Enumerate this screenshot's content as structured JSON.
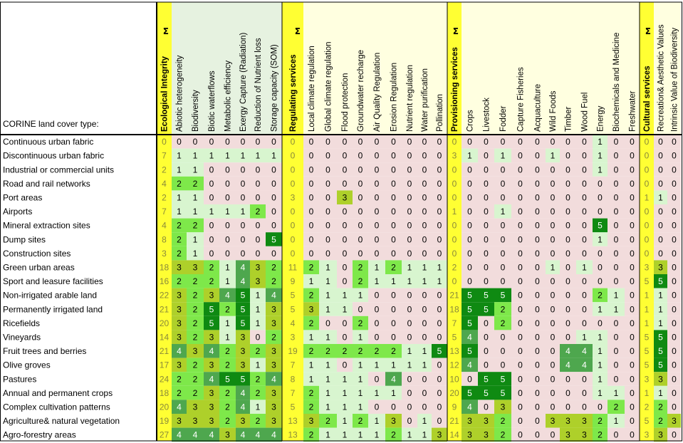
{
  "chart_data": {
    "type": "heatmap",
    "corner_label": "CORINE land cover type:",
    "sum_symbol": "Σ",
    "columns": [
      "Ecological Integrity",
      "Abiotic heterogeneity",
      "Biodiversity",
      "Biotic waterflows",
      "Metabolic efficiency",
      "Exergy Capture (Radiation)",
      "Reduction of Nutrient loss",
      "Storage capacity (SOM)",
      "Regulating services",
      "Local climate regulation",
      "Global climate regulation",
      "Flood protection",
      "Groundwater recharge",
      "Air Quality Regulation",
      "Erosion Regulation",
      "Nutrient regulation",
      "Water purification",
      "Pollination",
      "Provisioning services",
      "Crops",
      "Livestock",
      "Fodder",
      "Capture Fisheries",
      "Acquaculture",
      "Wild Foods",
      "Timber",
      "Wood Fuel",
      "Energy",
      "Biochemicals and Medicine",
      "Freshwater",
      "Cultural services",
      "Recreation& Aesthetic Values",
      "Intrinsic Value of Biodiversity"
    ],
    "sum_columns": [
      0,
      8,
      18,
      30
    ],
    "rows": [
      {
        "label": "Continuous urban fabric",
        "values": [
          0,
          0,
          0,
          0,
          0,
          0,
          0,
          0,
          0,
          0,
          0,
          0,
          0,
          0,
          0,
          0,
          0,
          0,
          0,
          0,
          0,
          0,
          0,
          0,
          0,
          0,
          0,
          1,
          0,
          0,
          0,
          0,
          0
        ]
      },
      {
        "label": "Discontinuous urban fabric",
        "values": [
          7,
          1,
          1,
          1,
          1,
          1,
          1,
          1,
          0,
          0,
          0,
          0,
          0,
          0,
          0,
          0,
          0,
          0,
          3,
          1,
          0,
          1,
          0,
          0,
          1,
          0,
          0,
          1,
          0,
          0,
          0,
          0,
          0
        ]
      },
      {
        "label": "Industrial or commercial units",
        "values": [
          2,
          1,
          1,
          0,
          0,
          0,
          0,
          0,
          0,
          0,
          0,
          0,
          0,
          0,
          0,
          0,
          0,
          0,
          0,
          0,
          0,
          0,
          0,
          0,
          0,
          0,
          0,
          1,
          0,
          0,
          0,
          0,
          0
        ]
      },
      {
        "label": "Road and rail networks",
        "values": [
          4,
          2,
          2,
          0,
          0,
          0,
          0,
          0,
          0,
          0,
          0,
          0,
          0,
          0,
          0,
          0,
          0,
          0,
          0,
          0,
          0,
          0,
          0,
          0,
          0,
          0,
          0,
          0,
          0,
          0,
          0,
          0,
          0
        ]
      },
      {
        "label": "Port areas",
        "values": [
          2,
          1,
          1,
          0,
          0,
          0,
          0,
          0,
          3,
          0,
          0,
          3,
          0,
          0,
          0,
          0,
          0,
          0,
          0,
          0,
          0,
          0,
          0,
          0,
          0,
          0,
          0,
          0,
          0,
          0,
          1,
          1,
          0
        ]
      },
      {
        "label": "Airports",
        "values": [
          7,
          1,
          1,
          1,
          1,
          1,
          2,
          0,
          0,
          0,
          0,
          0,
          0,
          0,
          0,
          0,
          0,
          0,
          1,
          0,
          0,
          1,
          0,
          0,
          0,
          0,
          0,
          0,
          0,
          0,
          0,
          0,
          0
        ]
      },
      {
        "label": "Mineral extraction sites",
        "values": [
          4,
          2,
          2,
          0,
          0,
          0,
          0,
          0,
          0,
          0,
          0,
          0,
          0,
          0,
          0,
          0,
          0,
          0,
          0,
          0,
          0,
          0,
          0,
          0,
          0,
          0,
          0,
          5,
          0,
          0,
          0,
          0,
          0
        ]
      },
      {
        "label": "Dump sites",
        "values": [
          8,
          2,
          1,
          0,
          0,
          0,
          0,
          5,
          0,
          0,
          0,
          0,
          0,
          0,
          0,
          0,
          0,
          0,
          0,
          0,
          0,
          0,
          0,
          0,
          0,
          0,
          0,
          1,
          0,
          0,
          0,
          0,
          0
        ]
      },
      {
        "label": "Construction sites",
        "values": [
          3,
          2,
          1,
          0,
          0,
          0,
          0,
          0,
          0,
          0,
          0,
          0,
          0,
          0,
          0,
          0,
          0,
          0,
          0,
          0,
          0,
          0,
          0,
          0,
          0,
          0,
          0,
          0,
          0,
          0,
          0,
          0,
          0
        ]
      },
      {
        "label": "Green urban areas",
        "values": [
          18,
          3,
          3,
          2,
          1,
          4,
          3,
          2,
          11,
          2,
          1,
          0,
          2,
          1,
          2,
          1,
          1,
          1,
          2,
          0,
          0,
          0,
          0,
          0,
          1,
          0,
          1,
          0,
          0,
          0,
          3,
          3,
          0
        ]
      },
      {
        "label": "Sport and leasure facilities",
        "values": [
          16,
          2,
          2,
          2,
          1,
          4,
          3,
          2,
          9,
          1,
          1,
          0,
          2,
          1,
          1,
          1,
          1,
          1,
          0,
          0,
          0,
          0,
          0,
          0,
          0,
          0,
          0,
          0,
          0,
          0,
          5,
          5,
          0
        ]
      },
      {
        "label": "Non-irrigated arable land",
        "values": [
          22,
          3,
          2,
          3,
          4,
          5,
          1,
          4,
          5,
          2,
          1,
          1,
          1,
          0,
          0,
          0,
          0,
          0,
          21,
          5,
          5,
          5,
          0,
          0,
          0,
          0,
          0,
          2,
          1,
          0,
          1,
          1,
          0
        ]
      },
      {
        "label": "Permanently irrigated land",
        "values": [
          21,
          3,
          2,
          5,
          2,
          5,
          1,
          3,
          5,
          3,
          1,
          1,
          0,
          0,
          0,
          0,
          0,
          0,
          18,
          5,
          5,
          2,
          0,
          0,
          0,
          0,
          0,
          1,
          1,
          0,
          1,
          1,
          0
        ]
      },
      {
        "label": "Ricefields",
        "values": [
          20,
          3,
          2,
          5,
          1,
          5,
          1,
          3,
          4,
          2,
          0,
          0,
          2,
          0,
          0,
          0,
          0,
          0,
          7,
          5,
          0,
          2,
          0,
          0,
          0,
          0,
          0,
          0,
          0,
          0,
          1,
          1,
          0
        ]
      },
      {
        "label": "Vineyards",
        "values": [
          14,
          3,
          2,
          3,
          1,
          3,
          0,
          2,
          3,
          1,
          1,
          0,
          1,
          0,
          0,
          0,
          0,
          0,
          5,
          4,
          0,
          0,
          0,
          0,
          0,
          0,
          1,
          1,
          0,
          0,
          5,
          5,
          0
        ]
      },
      {
        "label": "Fruit trees and berries",
        "values": [
          21,
          4,
          3,
          4,
          2,
          3,
          2,
          3,
          19,
          2,
          2,
          2,
          2,
          2,
          2,
          1,
          1,
          5,
          13,
          5,
          0,
          0,
          0,
          0,
          0,
          4,
          4,
          1,
          0,
          0,
          5,
          5,
          0
        ]
      },
      {
        "label": "Olive groves",
        "values": [
          17,
          3,
          2,
          3,
          2,
          3,
          1,
          3,
          7,
          1,
          1,
          0,
          1,
          1,
          1,
          1,
          1,
          0,
          12,
          4,
          0,
          0,
          0,
          0,
          0,
          4,
          4,
          1,
          0,
          0,
          5,
          5,
          0
        ]
      },
      {
        "label": "Pastures",
        "values": [
          24,
          2,
          2,
          4,
          5,
          5,
          2,
          4,
          8,
          1,
          1,
          1,
          1,
          0,
          4,
          0,
          0,
          0,
          10,
          0,
          5,
          5,
          0,
          0,
          0,
          0,
          0,
          1,
          0,
          0,
          3,
          3,
          0
        ]
      },
      {
        "label": "Annual and permanent crops",
        "values": [
          18,
          2,
          2,
          3,
          2,
          4,
          2,
          3,
          7,
          2,
          1,
          1,
          1,
          1,
          1,
          0,
          0,
          0,
          20,
          5,
          5,
          5,
          0,
          0,
          0,
          0,
          0,
          1,
          1,
          0,
          1,
          1,
          0
        ]
      },
      {
        "label": "Complex cultivation patterns",
        "values": [
          20,
          4,
          3,
          3,
          2,
          4,
          1,
          3,
          5,
          2,
          1,
          1,
          1,
          0,
          0,
          0,
          0,
          0,
          9,
          4,
          0,
          3,
          0,
          0,
          0,
          0,
          0,
          0,
          2,
          0,
          2,
          2,
          0
        ]
      },
      {
        "label": "Agriculture& natural vegetation",
        "values": [
          19,
          3,
          3,
          3,
          2,
          3,
          2,
          3,
          13,
          3,
          2,
          1,
          2,
          1,
          3,
          0,
          1,
          0,
          21,
          3,
          3,
          2,
          0,
          0,
          3,
          3,
          3,
          2,
          1,
          0,
          5,
          2,
          3
        ]
      },
      {
        "label": "Agro-forestry areas",
        "values": [
          27,
          4,
          4,
          4,
          3,
          4,
          4,
          4,
          13,
          2,
          1,
          1,
          1,
          1,
          2,
          1,
          1,
          3,
          14,
          3,
          3,
          2,
          0,
          0,
          0,
          3,
          3,
          2,
          0,
          0,
          3,
          3,
          0
        ]
      }
    ],
    "colors": {
      "sum_cell": "#ffff33",
      "sum_text": "#8a8a3a",
      "group_header": "#ffffe0",
      "group_header_ecological": "#e6f2e0",
      "zero_supply": "#f2dcdc",
      "level_1": "#d8f5cf",
      "level_2": "#7ee84a",
      "level_3": "#aed02a",
      "level_4": "#4ea74e",
      "level_5": "#0f8a12"
    }
  }
}
